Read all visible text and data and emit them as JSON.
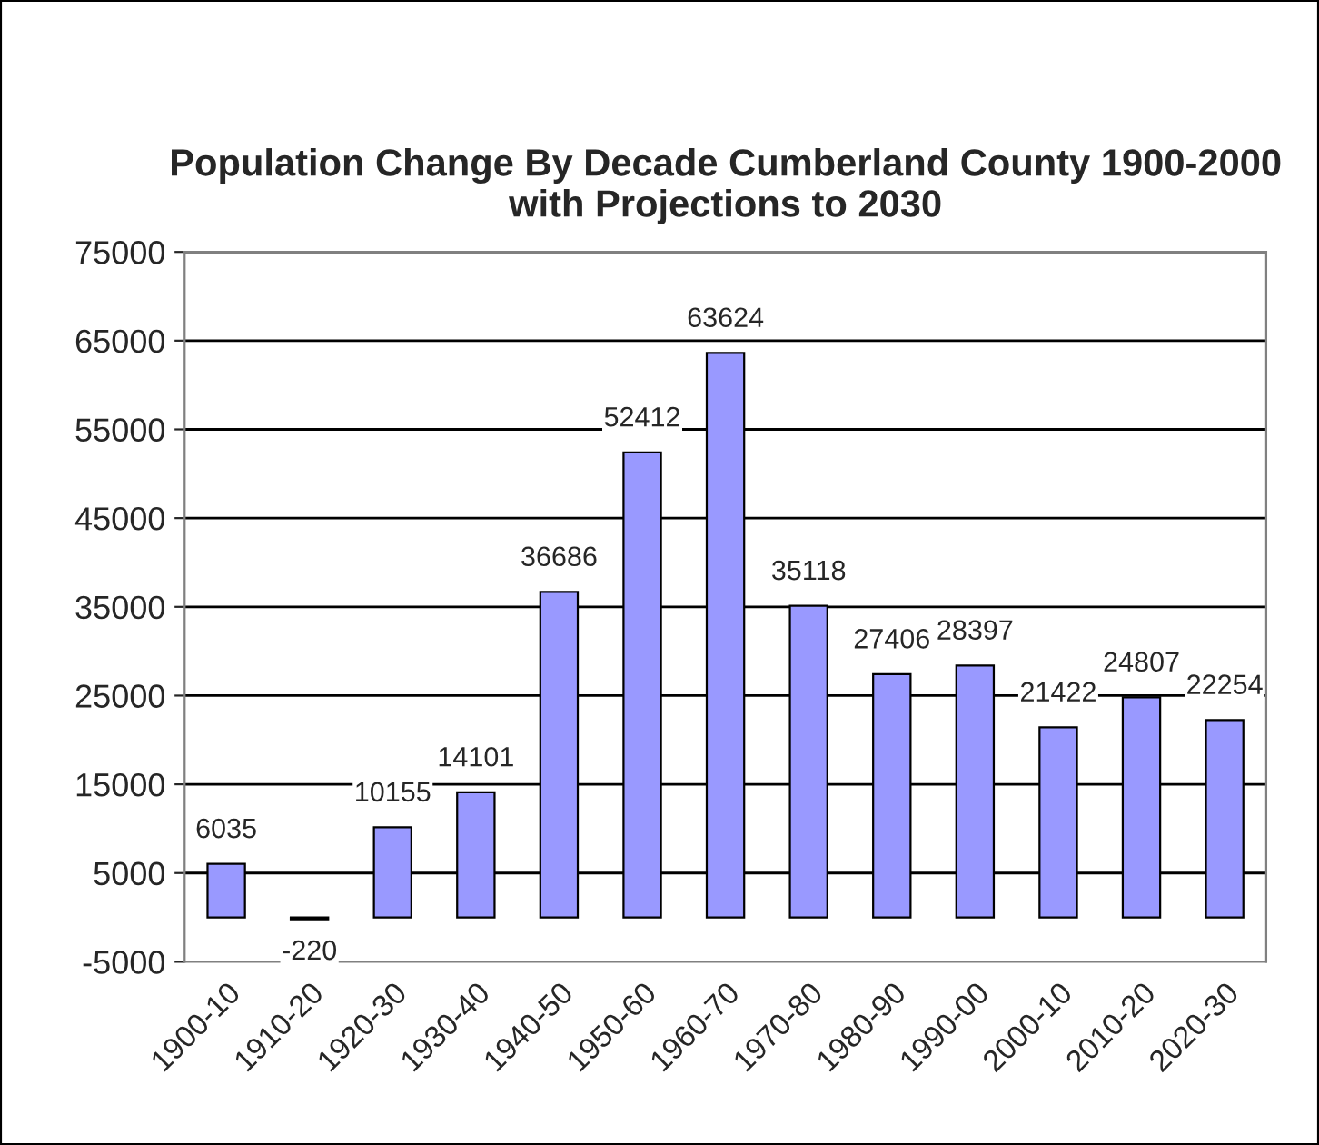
{
  "chart_data": {
    "type": "bar",
    "title": "Population Change By Decade Cumberland County 1900-2000\nwith Projections to 2030",
    "categories": [
      "1900-10",
      "1910-20",
      "1920-30",
      "1930-40",
      "1940-50",
      "1950-60",
      "1960-70",
      "1970-80",
      "1980-90",
      "1990-00",
      "2000-10",
      "2010-20",
      "2020-30"
    ],
    "values": [
      6035,
      -220,
      10155,
      14101,
      36686,
      52412,
      63624,
      35118,
      27406,
      28397,
      21422,
      24807,
      22254
    ],
    "color": "#9999ff",
    "ylim": [
      -5000,
      75000
    ],
    "yticks": [
      -5000,
      5000,
      15000,
      25000,
      35000,
      45000,
      55000,
      65000,
      75000
    ],
    "grid": "y",
    "data_labels": true
  }
}
